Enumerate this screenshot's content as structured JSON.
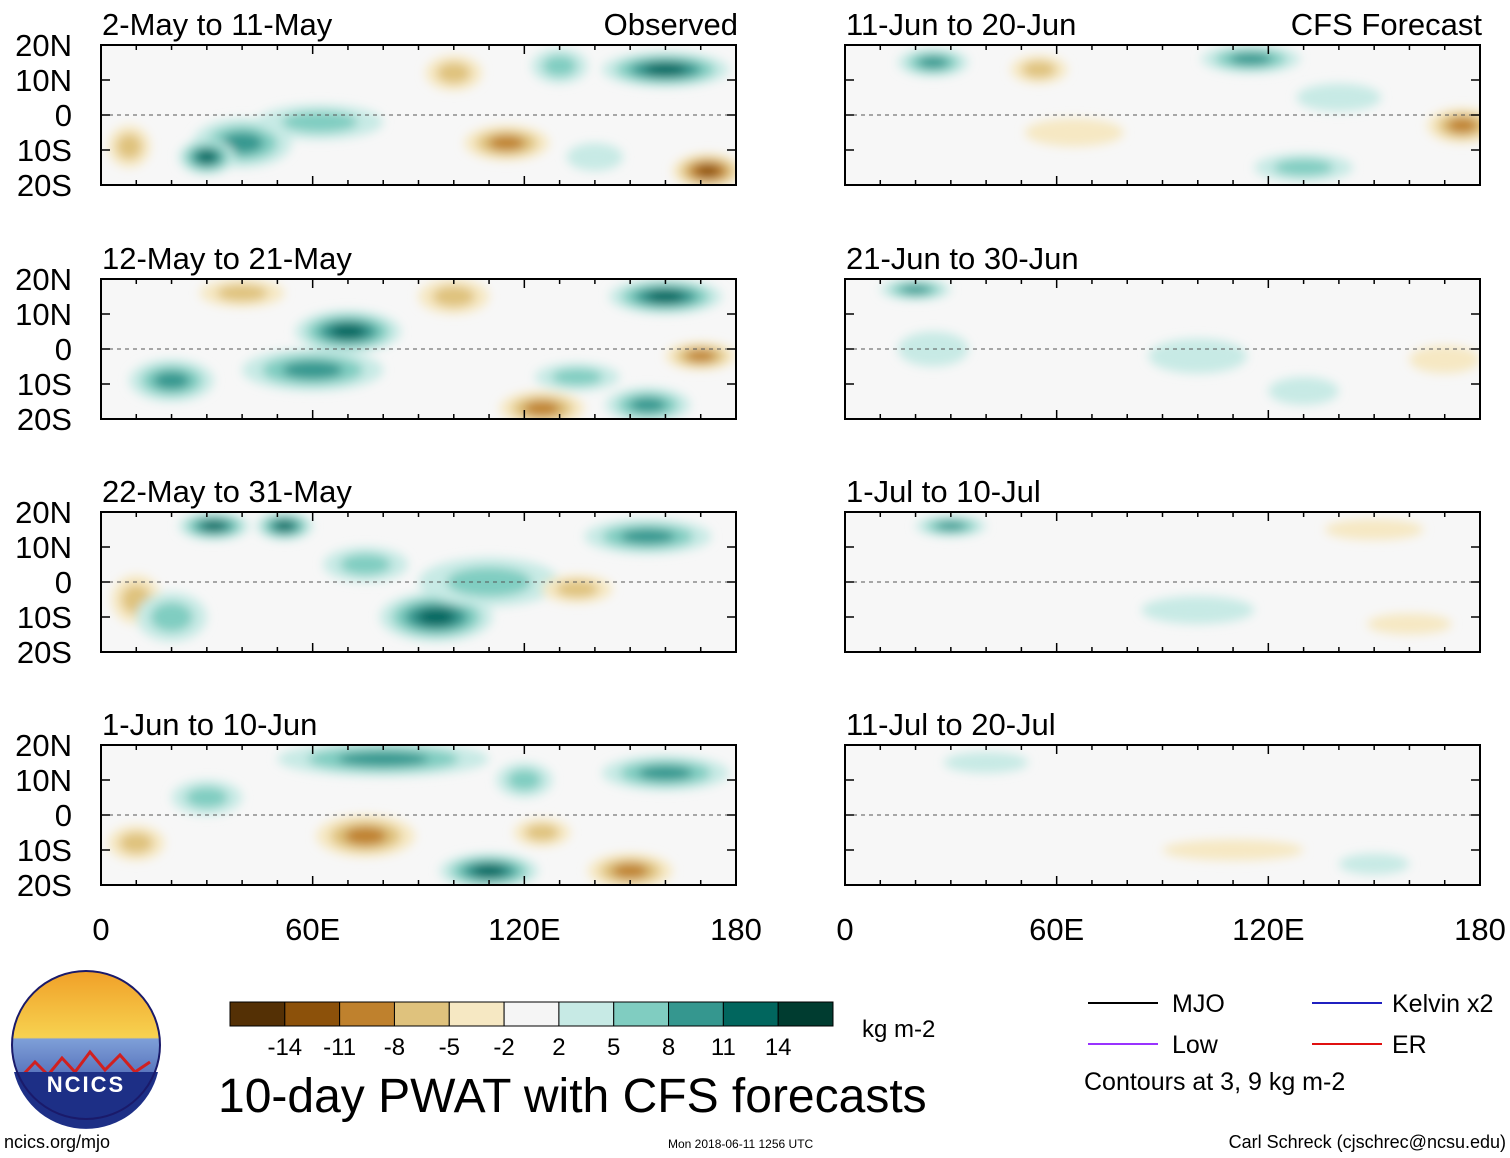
{
  "title": "10-day PWAT with CFS forecasts",
  "units": "kg m-2",
  "contour_note": "Contours at 3, 9 kg m-2",
  "site": "ncics.org/mjo",
  "timestamp": "Mon 2018-06-11 1256 UTC",
  "author": "Carl Schreck (cjschrec@ncsu.edu)",
  "logo_text": "NCICS",
  "column_headers": {
    "left": "Observed",
    "right": "CFS Forecast"
  },
  "colorbar": {
    "tick_labels": [
      "-14",
      "-11",
      "-8",
      "-5",
      "-2",
      "2",
      "5",
      "8",
      "11",
      "14"
    ],
    "colors": [
      "#543005",
      "#8c510a",
      "#bf812d",
      "#dfc27d",
      "#f6e8c3",
      "#f5f5f5",
      "#c7eae5",
      "#80cdc1",
      "#35978f",
      "#01665e",
      "#003c30"
    ]
  },
  "legend": [
    {
      "label": "MJO",
      "color": "#000000"
    },
    {
      "label": "Kelvin x2",
      "color": "#2020c0"
    },
    {
      "label": "Low",
      "color": "#9933ff"
    },
    {
      "label": "ER",
      "color": "#e01010"
    }
  ],
  "chart_data": {
    "type": "heatmap",
    "variable": "Precipitable water anomaly",
    "x_ticks": [
      "0",
      "60E",
      "120E",
      "180"
    ],
    "y_ticks": [
      "20N",
      "10N",
      "0",
      "10S",
      "20S"
    ],
    "xlim": [
      0,
      180
    ],
    "ylim": [
      -20,
      20
    ],
    "panels": [
      {
        "label": "2-May to 11-May",
        "kind": "Observed",
        "column": 0,
        "row": 0,
        "blobs": [
          {
            "lon": 40,
            "lat": -8,
            "rx": 14,
            "ry": 7,
            "v": 9
          },
          {
            "lon": 30,
            "lat": -12,
            "rx": 8,
            "ry": 5,
            "v": 11
          },
          {
            "lon": 62,
            "lat": -2,
            "rx": 18,
            "ry": 5,
            "v": 5
          },
          {
            "lon": 160,
            "lat": 13,
            "rx": 18,
            "ry": 5,
            "v": 12
          },
          {
            "lon": 115,
            "lat": -8,
            "rx": 12,
            "ry": 5,
            "v": -9
          },
          {
            "lon": 172,
            "lat": -16,
            "rx": 10,
            "ry": 5,
            "v": -13
          },
          {
            "lon": 100,
            "lat": 12,
            "rx": 8,
            "ry": 5,
            "v": -5
          },
          {
            "lon": 8,
            "lat": -9,
            "rx": 6,
            "ry": 6,
            "v": -5
          },
          {
            "lon": 130,
            "lat": 14,
            "rx": 8,
            "ry": 5,
            "v": 5
          },
          {
            "lon": 140,
            "lat": -12,
            "rx": 8,
            "ry": 4,
            "v": 4
          }
        ]
      },
      {
        "label": "12-May to 21-May",
        "kind": "Observed",
        "column": 0,
        "row": 1,
        "blobs": [
          {
            "lon": 70,
            "lat": 5,
            "rx": 15,
            "ry": 6,
            "v": 11
          },
          {
            "lon": 60,
            "lat": -6,
            "rx": 20,
            "ry": 6,
            "v": 9
          },
          {
            "lon": 20,
            "lat": -9,
            "rx": 12,
            "ry": 6,
            "v": 8
          },
          {
            "lon": 160,
            "lat": 15,
            "rx": 16,
            "ry": 5,
            "v": 12
          },
          {
            "lon": 155,
            "lat": -16,
            "rx": 12,
            "ry": 5,
            "v": 10
          },
          {
            "lon": 125,
            "lat": -17,
            "rx": 12,
            "ry": 5,
            "v": -10
          },
          {
            "lon": 170,
            "lat": -2,
            "rx": 10,
            "ry": 4,
            "v": -8
          },
          {
            "lon": 100,
            "lat": 15,
            "rx": 10,
            "ry": 5,
            "v": -6
          },
          {
            "lon": 135,
            "lat": -8,
            "rx": 12,
            "ry": 4,
            "v": 6
          },
          {
            "lon": 40,
            "lat": 16,
            "rx": 12,
            "ry": 4,
            "v": -5
          }
        ]
      },
      {
        "label": "22-May to 31-May",
        "kind": "Observed",
        "column": 0,
        "row": 2,
        "blobs": [
          {
            "lon": 32,
            "lat": 16,
            "rx": 10,
            "ry": 4,
            "v": 13
          },
          {
            "lon": 52,
            "lat": 16,
            "rx": 8,
            "ry": 4,
            "v": 11
          },
          {
            "lon": 95,
            "lat": -10,
            "rx": 16,
            "ry": 7,
            "v": 11
          },
          {
            "lon": 110,
            "lat": 0,
            "rx": 20,
            "ry": 7,
            "v": 6
          },
          {
            "lon": 155,
            "lat": 13,
            "rx": 18,
            "ry": 5,
            "v": 8
          },
          {
            "lon": 10,
            "lat": -5,
            "rx": 7,
            "ry": 7,
            "v": -7
          },
          {
            "lon": 135,
            "lat": -2,
            "rx": 10,
            "ry": 4,
            "v": -5
          },
          {
            "lon": 20,
            "lat": -10,
            "rx": 10,
            "ry": 7,
            "v": 6
          },
          {
            "lon": 75,
            "lat": 5,
            "rx": 12,
            "ry": 5,
            "v": 5
          }
        ]
      },
      {
        "label": "1-Jun to 10-Jun",
        "kind": "Observed",
        "column": 0,
        "row": 3,
        "blobs": [
          {
            "lon": 110,
            "lat": -16,
            "rx": 14,
            "ry": 5,
            "v": 12
          },
          {
            "lon": 80,
            "lat": 16,
            "rx": 30,
            "ry": 5,
            "v": 9
          },
          {
            "lon": 160,
            "lat": 12,
            "rx": 18,
            "ry": 5,
            "v": 10
          },
          {
            "lon": 75,
            "lat": -6,
            "rx": 14,
            "ry": 6,
            "v": -10
          },
          {
            "lon": 150,
            "lat": -16,
            "rx": 12,
            "ry": 5,
            "v": -10
          },
          {
            "lon": 30,
            "lat": 5,
            "rx": 10,
            "ry": 5,
            "v": 6
          },
          {
            "lon": 120,
            "lat": 10,
            "rx": 8,
            "ry": 5,
            "v": 5
          },
          {
            "lon": 10,
            "lat": -8,
            "rx": 8,
            "ry": 5,
            "v": -5
          },
          {
            "lon": 125,
            "lat": -5,
            "rx": 8,
            "ry": 4,
            "v": -6
          }
        ]
      },
      {
        "label": "11-Jun to 20-Jun",
        "kind": "CFS Forecast",
        "column": 1,
        "row": 0,
        "blobs": [
          {
            "lon": 25,
            "lat": 15,
            "rx": 10,
            "ry": 4,
            "v": 10
          },
          {
            "lon": 55,
            "lat": 13,
            "rx": 8,
            "ry": 4,
            "v": -6
          },
          {
            "lon": 115,
            "lat": 16,
            "rx": 14,
            "ry": 4,
            "v": 8
          },
          {
            "lon": 175,
            "lat": -3,
            "rx": 10,
            "ry": 5,
            "v": -10
          },
          {
            "lon": 65,
            "lat": -5,
            "rx": 14,
            "ry": 4,
            "v": -4
          },
          {
            "lon": 130,
            "lat": -15,
            "rx": 14,
            "ry": 4,
            "v": 5
          },
          {
            "lon": 140,
            "lat": 5,
            "rx": 12,
            "ry": 4,
            "v": 3
          }
        ]
      },
      {
        "label": "21-Jun to 30-Jun",
        "kind": "CFS Forecast",
        "column": 1,
        "row": 1,
        "blobs": [
          {
            "lon": 20,
            "lat": 17,
            "rx": 10,
            "ry": 3,
            "v": 9
          },
          {
            "lon": 100,
            "lat": -2,
            "rx": 14,
            "ry": 5,
            "v": 4
          },
          {
            "lon": 130,
            "lat": -12,
            "rx": 10,
            "ry": 4,
            "v": 4
          },
          {
            "lon": 170,
            "lat": -3,
            "rx": 10,
            "ry": 4,
            "v": -4
          },
          {
            "lon": 25,
            "lat": 0,
            "rx": 10,
            "ry": 5,
            "v": 4
          }
        ]
      },
      {
        "label": "1-Jul to 10-Jul",
        "kind": "CFS Forecast",
        "column": 1,
        "row": 2,
        "blobs": [
          {
            "lon": 30,
            "lat": 16,
            "rx": 10,
            "ry": 3,
            "v": 8
          },
          {
            "lon": 100,
            "lat": -8,
            "rx": 16,
            "ry": 4,
            "v": 4
          },
          {
            "lon": 160,
            "lat": -12,
            "rx": 12,
            "ry": 3,
            "v": -3
          },
          {
            "lon": 150,
            "lat": 15,
            "rx": 14,
            "ry": 3,
            "v": -3
          }
        ]
      },
      {
        "label": "11-Jul to 20-Jul",
        "kind": "CFS Forecast",
        "column": 1,
        "row": 3,
        "blobs": [
          {
            "lon": 110,
            "lat": -10,
            "rx": 20,
            "ry": 3,
            "v": -3
          },
          {
            "lon": 40,
            "lat": 15,
            "rx": 12,
            "ry": 3,
            "v": 4
          },
          {
            "lon": 150,
            "lat": -14,
            "rx": 10,
            "ry": 3,
            "v": 3
          }
        ]
      }
    ]
  }
}
